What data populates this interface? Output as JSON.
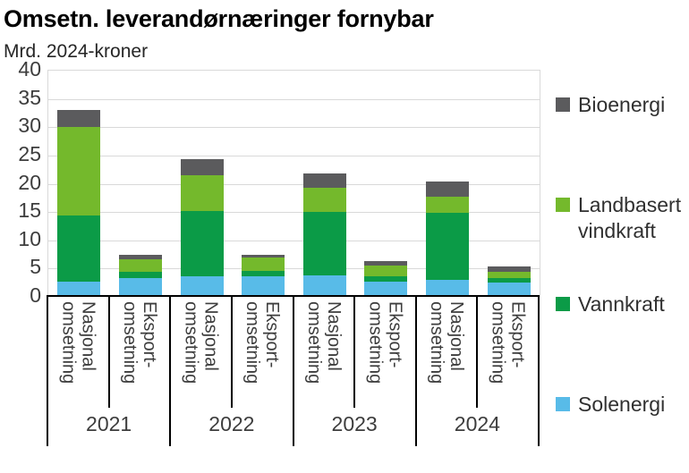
{
  "header": {
    "title": "Omsetn. leverandørnæringer fornybar",
    "unit": "Mrd. 2024-kroner"
  },
  "chart_data": {
    "type": "bar",
    "stacked": true,
    "title": "Omsetn. leverandørnæringer fornybar",
    "ylabel": "Mrd. 2024-kroner",
    "xlabel": "",
    "ylim": [
      0,
      40
    ],
    "yticks": [
      0,
      5,
      10,
      15,
      20,
      25,
      30,
      35,
      40
    ],
    "grid": true,
    "legend_position": "right",
    "group_labels": [
      "2021",
      "2022",
      "2023",
      "2024"
    ],
    "tick_labels": [
      "Nasjonal\nomsetning",
      "Eksport-\nomsetning",
      "Nasjonal\nomsetning",
      "Eksport-\nomsetning",
      "Nasjonal\nomsetning",
      "Eksport-\nomsetning",
      "Nasjonal\nomsetning",
      "Eksport-\nomsetning"
    ],
    "series": [
      {
        "name": "Solenergi",
        "color": "#58BBE8",
        "values": [
          2.7,
          3.4,
          3.7,
          3.6,
          3.8,
          2.7,
          3.0,
          2.5
        ]
      },
      {
        "name": "Vannkraft",
        "color": "#0B9B47",
        "values": [
          11.7,
          1.0,
          11.5,
          1.0,
          11.3,
          1.0,
          11.9,
          0.8
        ]
      },
      {
        "name": "Landbasert vindkraft",
        "color": "#74B92C",
        "values": [
          15.6,
          2.3,
          6.3,
          2.3,
          4.2,
          1.9,
          2.8,
          1.1
        ]
      },
      {
        "name": "Bioenergi",
        "color": "#5B5B5D",
        "values": [
          3.0,
          0.8,
          2.9,
          0.5,
          2.6,
          0.7,
          2.7,
          1.0
        ]
      }
    ],
    "totals": [
      33.0,
      7.5,
      24.4,
      7.4,
      21.9,
      6.3,
      20.4,
      5.4
    ],
    "legend": [
      {
        "label": "Bioenergi",
        "color": "#5B5B5D"
      },
      {
        "label": "Landbasert\nvindkraft",
        "color": "#74B92C"
      },
      {
        "label": "Vannkraft",
        "color": "#0B9B47"
      },
      {
        "label": "Solenergi",
        "color": "#58BBE8"
      }
    ]
  }
}
